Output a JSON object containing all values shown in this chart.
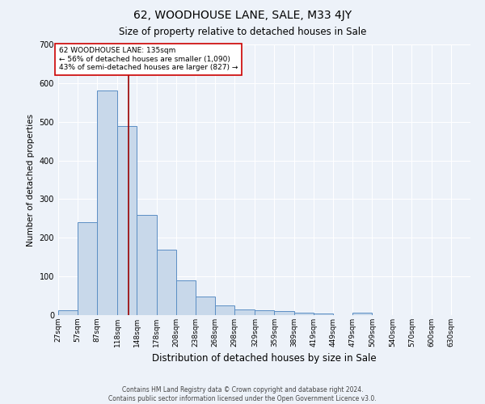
{
  "title": "62, WOODHOUSE LANE, SALE, M33 4JY",
  "subtitle": "Size of property relative to detached houses in Sale",
  "xlabel": "Distribution of detached houses by size in Sale",
  "ylabel": "Number of detached properties",
  "footer": "Contains HM Land Registry data © Crown copyright and database right 2024.\nContains public sector information licensed under the Open Government Licence v3.0.",
  "bar_left_edges": [
    27,
    57,
    87,
    118,
    148,
    178,
    208,
    238,
    268,
    298,
    329,
    359,
    389,
    419,
    449,
    479,
    509,
    540,
    570,
    600,
    630
  ],
  "bar_heights": [
    12,
    240,
    580,
    490,
    260,
    170,
    90,
    48,
    25,
    14,
    12,
    10,
    6,
    4,
    0,
    7,
    0,
    0,
    0,
    0,
    0
  ],
  "bar_widths": [
    30,
    30,
    31,
    30,
    30,
    30,
    30,
    30,
    30,
    31,
    30,
    30,
    30,
    30,
    30,
    30,
    31,
    30,
    30,
    30,
    30
  ],
  "tick_labels": [
    "27sqm",
    "57sqm",
    "87sqm",
    "118sqm",
    "148sqm",
    "178sqm",
    "208sqm",
    "238sqm",
    "268sqm",
    "298sqm",
    "329sqm",
    "359sqm",
    "389sqm",
    "419sqm",
    "449sqm",
    "479sqm",
    "509sqm",
    "540sqm",
    "570sqm",
    "600sqm",
    "630sqm"
  ],
  "bar_color": "#c8d8ea",
  "bar_edge_color": "#5b8ec4",
  "bg_color": "#edf2f9",
  "grid_color": "#ffffff",
  "property_line_x": 135,
  "property_line_color": "#990000",
  "annotation_text": "62 WOODHOUSE LANE: 135sqm\n← 56% of detached houses are smaller (1,090)\n43% of semi-detached houses are larger (827) →",
  "annotation_box_facecolor": "#ffffff",
  "annotation_box_edgecolor": "#cc0000",
  "ylim": [
    0,
    700
  ],
  "yticks": [
    0,
    100,
    200,
    300,
    400,
    500,
    600,
    700
  ],
  "title_fontsize": 10,
  "subtitle_fontsize": 8.5,
  "xlabel_fontsize": 8.5,
  "ylabel_fontsize": 7.5,
  "tick_fontsize": 6.5,
  "annotation_fontsize": 6.5,
  "footer_fontsize": 5.5
}
